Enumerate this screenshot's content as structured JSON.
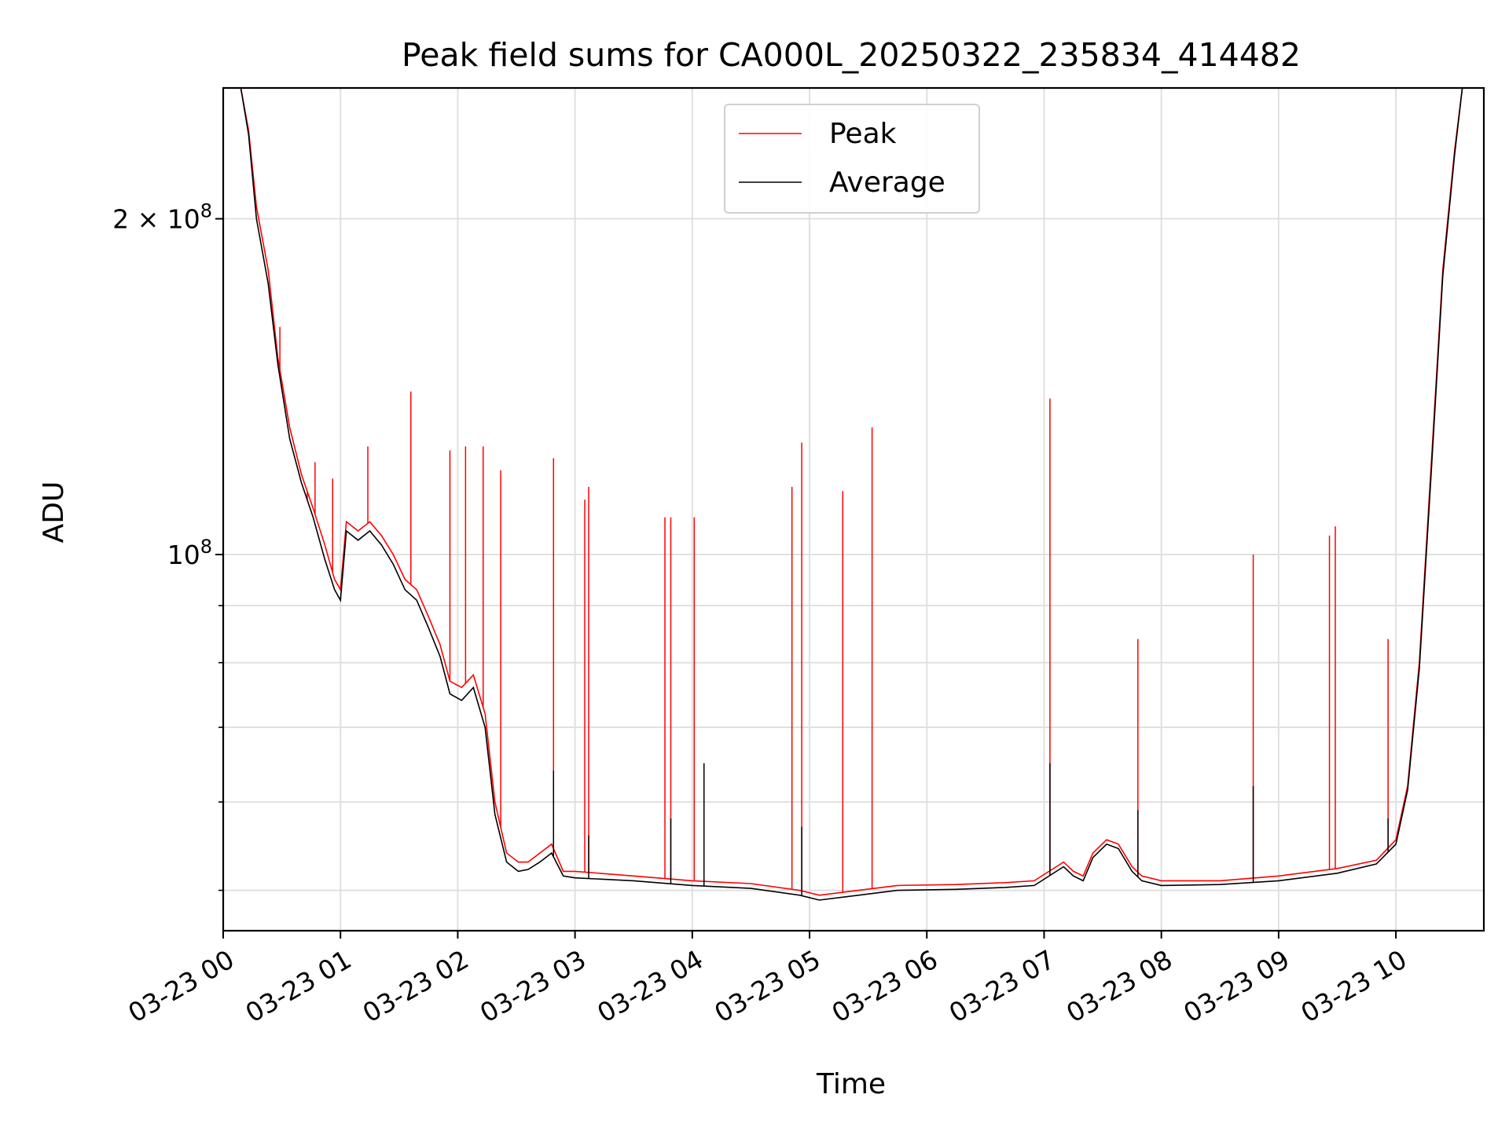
{
  "chart_data": {
    "type": "line",
    "title": "Peak field sums for CA000L_20250322_235834_414482",
    "xlabel": "Time",
    "ylabel": "ADU",
    "yscale": "log",
    "grid": true,
    "legend_position": "upper center",
    "xlim": [
      "2025-03-23 00:00",
      "2025-03-23 10:45"
    ],
    "ylim": [
      46000000,
      262000000
    ],
    "x_ticks": [
      "2025-03-23 00:00",
      "2025-03-23 01:00",
      "2025-03-23 02:00",
      "2025-03-23 03:00",
      "2025-03-23 04:00",
      "2025-03-23 05:00",
      "2025-03-23 06:00",
      "2025-03-23 07:00",
      "2025-03-23 08:00",
      "2025-03-23 09:00",
      "2025-03-23 10:00"
    ],
    "x_tick_labels": [
      "03-23 00",
      "03-23 01",
      "03-23 02",
      "03-23 03",
      "03-23 04",
      "03-23 05",
      "03-23 06",
      "03-23 07",
      "03-23 08",
      "03-23 09",
      "03-23 10"
    ],
    "y_tick_labels": [
      {
        "value": 200000000,
        "mantissa": "2 × 10",
        "exponent": "8"
      },
      {
        "value": 100000000,
        "mantissa": "10",
        "exponent": "8"
      }
    ],
    "y_minor_ticks": [
      90000000,
      80000000,
      70000000,
      60000000,
      50000000
    ],
    "series": [
      {
        "name": "Peak",
        "color": "#ff0000",
        "points": [
          [
            "2025-03-23 00:00",
            262000000
          ],
          [
            "2025-03-23 00:09",
            262000000
          ],
          [
            "2025-03-23 00:13",
            240000000
          ],
          [
            "2025-03-23 00:17",
            205000000
          ],
          [
            "2025-03-23 00:23",
            180000000
          ],
          [
            "2025-03-23 00:28",
            150000000
          ],
          [
            "2025-03-23 00:34",
            130000000
          ],
          [
            "2025-03-23 00:40",
            118000000
          ],
          [
            "2025-03-23 00:46",
            110000000
          ],
          [
            "2025-03-23 00:52",
            102000000
          ],
          [
            "2025-03-23 00:57",
            95000000
          ],
          [
            "2025-03-23 01:00",
            93000000
          ],
          [
            "2025-03-23 01:03",
            107000000
          ],
          [
            "2025-03-23 01:09",
            105000000
          ],
          [
            "2025-03-23 01:15",
            107000000
          ],
          [
            "2025-03-23 01:21",
            104000000
          ],
          [
            "2025-03-23 01:27",
            100000000
          ],
          [
            "2025-03-23 01:33",
            95000000
          ],
          [
            "2025-03-23 01:39",
            93000000
          ],
          [
            "2025-03-23 01:45",
            88000000
          ],
          [
            "2025-03-23 01:51",
            83000000
          ],
          [
            "2025-03-23 01:56",
            77000000
          ],
          [
            "2025-03-23 02:02",
            76000000
          ],
          [
            "2025-03-23 02:08",
            78000000
          ],
          [
            "2025-03-23 02:14",
            72000000
          ],
          [
            "2025-03-23 02:19",
            60000000
          ],
          [
            "2025-03-23 02:25",
            54000000
          ],
          [
            "2025-03-23 02:31",
            53000000
          ],
          [
            "2025-03-23 02:36",
            53000000
          ],
          [
            "2025-03-23 02:42",
            54000000
          ],
          [
            "2025-03-23 02:48",
            55000000
          ],
          [
            "2025-03-23 02:54",
            52000000
          ],
          [
            "2025-03-23 03:00",
            52000000
          ],
          [
            "2025-03-23 03:30",
            51500000
          ],
          [
            "2025-03-23 04:00",
            51000000
          ],
          [
            "2025-03-23 04:30",
            50700000
          ],
          [
            "2025-03-23 04:55",
            50000000
          ],
          [
            "2025-03-23 05:05",
            49500000
          ],
          [
            "2025-03-23 05:25",
            50000000
          ],
          [
            "2025-03-23 05:45",
            50500000
          ],
          [
            "2025-03-23 06:15",
            50600000
          ],
          [
            "2025-03-23 06:40",
            50800000
          ],
          [
            "2025-03-23 06:55",
            51000000
          ],
          [
            "2025-03-23 07:10",
            53000000
          ],
          [
            "2025-03-23 07:15",
            52000000
          ],
          [
            "2025-03-23 07:20",
            51500000
          ],
          [
            "2025-03-23 07:25",
            54000000
          ],
          [
            "2025-03-23 07:32",
            55500000
          ],
          [
            "2025-03-23 07:38",
            55000000
          ],
          [
            "2025-03-23 07:45",
            52500000
          ],
          [
            "2025-03-23 07:50",
            51500000
          ],
          [
            "2025-03-23 08:00",
            51000000
          ],
          [
            "2025-03-23 08:30",
            51000000
          ],
          [
            "2025-03-23 09:00",
            51500000
          ],
          [
            "2025-03-23 09:30",
            52300000
          ],
          [
            "2025-03-23 09:50",
            53200000
          ],
          [
            "2025-03-23 10:00",
            55500000
          ],
          [
            "2025-03-23 10:06",
            62000000
          ],
          [
            "2025-03-23 10:12",
            80000000
          ],
          [
            "2025-03-23 10:18",
            120000000
          ],
          [
            "2025-03-23 10:24",
            180000000
          ],
          [
            "2025-03-23 10:30",
            230000000
          ],
          [
            "2025-03-23 10:34",
            262000000
          ],
          [
            "2025-03-23 10:36",
            262000000
          ]
        ],
        "spikes": [
          [
            "2025-03-23 00:29",
            160000000
          ],
          [
            "2025-03-23 00:43",
            112000000
          ],
          [
            "2025-03-23 00:47",
            121000000
          ],
          [
            "2025-03-23 00:56",
            117000000
          ],
          [
            "2025-03-23 01:14",
            125000000
          ],
          [
            "2025-03-23 01:36",
            140000000
          ],
          [
            "2025-03-23 01:56",
            124000000
          ],
          [
            "2025-03-23 02:04",
            125000000
          ],
          [
            "2025-03-23 02:13",
            125000000
          ],
          [
            "2025-03-23 02:22",
            119000000
          ],
          [
            "2025-03-23 02:49",
            122000000
          ],
          [
            "2025-03-23 03:05",
            112000000
          ],
          [
            "2025-03-23 03:07",
            115000000
          ],
          [
            "2025-03-23 03:46",
            108000000
          ],
          [
            "2025-03-23 03:49",
            108000000
          ],
          [
            "2025-03-23 04:01",
            108000000
          ],
          [
            "2025-03-23 04:51",
            115000000
          ],
          [
            "2025-03-23 04:56",
            126000000
          ],
          [
            "2025-03-23 05:17",
            114000000
          ],
          [
            "2025-03-23 05:32",
            130000000
          ],
          [
            "2025-03-23 07:03",
            138000000
          ],
          [
            "2025-03-23 07:48",
            84000000
          ],
          [
            "2025-03-23 08:47",
            100000000
          ],
          [
            "2025-03-23 09:26",
            104000000
          ],
          [
            "2025-03-23 09:29",
            106000000
          ],
          [
            "2025-03-23 09:56",
            84000000
          ]
        ]
      },
      {
        "name": "Average",
        "color": "#000000",
        "points": [
          [
            "2025-03-23 00:00",
            262000000
          ],
          [
            "2025-03-23 00:09",
            262000000
          ],
          [
            "2025-03-23 00:13",
            238000000
          ],
          [
            "2025-03-23 00:17",
            200000000
          ],
          [
            "2025-03-23 00:23",
            175000000
          ],
          [
            "2025-03-23 00:28",
            148000000
          ],
          [
            "2025-03-23 00:34",
            127000000
          ],
          [
            "2025-03-23 00:40",
            116000000
          ],
          [
            "2025-03-23 00:46",
            108000000
          ],
          [
            "2025-03-23 00:52",
            99000000
          ],
          [
            "2025-03-23 00:57",
            93000000
          ],
          [
            "2025-03-23 01:00",
            91000000
          ],
          [
            "2025-03-23 01:03",
            105000000
          ],
          [
            "2025-03-23 01:09",
            103000000
          ],
          [
            "2025-03-23 01:15",
            105000000
          ],
          [
            "2025-03-23 01:21",
            102000000
          ],
          [
            "2025-03-23 01:27",
            98000000
          ],
          [
            "2025-03-23 01:33",
            93000000
          ],
          [
            "2025-03-23 01:39",
            91000000
          ],
          [
            "2025-03-23 01:45",
            86000000
          ],
          [
            "2025-03-23 01:51",
            81000000
          ],
          [
            "2025-03-23 01:56",
            75000000
          ],
          [
            "2025-03-23 02:02",
            74000000
          ],
          [
            "2025-03-23 02:08",
            76000000
          ],
          [
            "2025-03-23 02:14",
            70000000
          ],
          [
            "2025-03-23 02:19",
            58500000
          ],
          [
            "2025-03-23 02:25",
            53000000
          ],
          [
            "2025-03-23 02:31",
            52000000
          ],
          [
            "2025-03-23 02:36",
            52200000
          ],
          [
            "2025-03-23 02:42",
            53000000
          ],
          [
            "2025-03-23 02:48",
            54000000
          ],
          [
            "2025-03-23 02:54",
            51500000
          ],
          [
            "2025-03-23 03:00",
            51300000
          ],
          [
            "2025-03-23 03:30",
            51000000
          ],
          [
            "2025-03-23 04:00",
            50500000
          ],
          [
            "2025-03-23 04:30",
            50200000
          ],
          [
            "2025-03-23 04:55",
            49500000
          ],
          [
            "2025-03-23 05:05",
            49000000
          ],
          [
            "2025-03-23 05:25",
            49500000
          ],
          [
            "2025-03-23 05:45",
            50000000
          ],
          [
            "2025-03-23 06:15",
            50100000
          ],
          [
            "2025-03-23 06:40",
            50300000
          ],
          [
            "2025-03-23 06:55",
            50500000
          ],
          [
            "2025-03-23 07:10",
            52500000
          ],
          [
            "2025-03-23 07:15",
            51500000
          ],
          [
            "2025-03-23 07:20",
            51000000
          ],
          [
            "2025-03-23 07:25",
            53500000
          ],
          [
            "2025-03-23 07:32",
            55000000
          ],
          [
            "2025-03-23 07:38",
            54500000
          ],
          [
            "2025-03-23 07:45",
            52000000
          ],
          [
            "2025-03-23 07:50",
            51000000
          ],
          [
            "2025-03-23 08:00",
            50500000
          ],
          [
            "2025-03-23 08:30",
            50600000
          ],
          [
            "2025-03-23 09:00",
            51000000
          ],
          [
            "2025-03-23 09:30",
            51800000
          ],
          [
            "2025-03-23 09:50",
            52800000
          ],
          [
            "2025-03-23 10:00",
            55000000
          ],
          [
            "2025-03-23 10:06",
            61500000
          ],
          [
            "2025-03-23 10:12",
            79000000
          ],
          [
            "2025-03-23 10:18",
            118000000
          ],
          [
            "2025-03-23 10:24",
            178000000
          ],
          [
            "2025-03-23 10:30",
            228000000
          ],
          [
            "2025-03-23 10:34",
            262000000
          ],
          [
            "2025-03-23 10:36",
            262000000
          ]
        ],
        "spikes": [
          [
            "2025-03-23 02:49",
            64000000
          ],
          [
            "2025-03-23 03:07",
            56000000
          ],
          [
            "2025-03-23 03:49",
            58000000
          ],
          [
            "2025-03-23 04:06",
            65000000
          ],
          [
            "2025-03-23 04:56",
            57000000
          ],
          [
            "2025-03-23 07:03",
            65000000
          ],
          [
            "2025-03-23 07:48",
            59000000
          ],
          [
            "2025-03-23 08:47",
            62000000
          ],
          [
            "2025-03-23 09:56",
            58000000
          ]
        ]
      }
    ]
  }
}
